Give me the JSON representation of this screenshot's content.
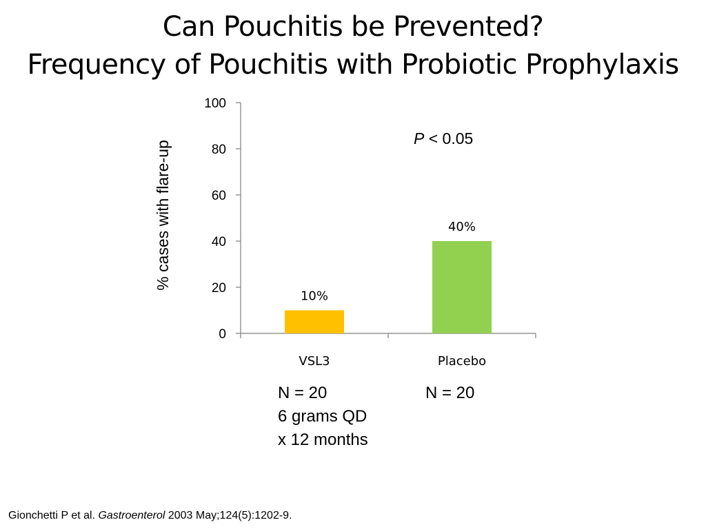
{
  "slide": {
    "title_line1": "Can Pouchitis be Prevented?",
    "title_line2": "Frequency of Pouchitis with Probiotic Prophylaxis",
    "p_value": {
      "symbol": "P",
      "text": " < 0.05"
    },
    "groups": [
      {
        "lines": [
          "N = 20",
          "6 grams QD",
          "x 12 months"
        ]
      },
      {
        "lines": [
          "N = 20"
        ]
      }
    ],
    "citation": {
      "authors": "Gionchetti P et al. ",
      "journal": "Gastroenterol",
      "details": " 2003 May;124(5):1202-9."
    }
  },
  "chart_data": {
    "type": "bar",
    "title": "",
    "xlabel": "",
    "ylabel": "% cases with flare-up",
    "categories": [
      "VSL3",
      "Placebo"
    ],
    "values": [
      10,
      40
    ],
    "data_labels": [
      "10%",
      "40%"
    ],
    "colors": [
      "#FFC000",
      "#92D050"
    ],
    "ylim": [
      0,
      100
    ],
    "yticks": [
      0,
      20,
      40,
      60,
      80,
      100
    ],
    "grid": false,
    "legend": "none"
  }
}
